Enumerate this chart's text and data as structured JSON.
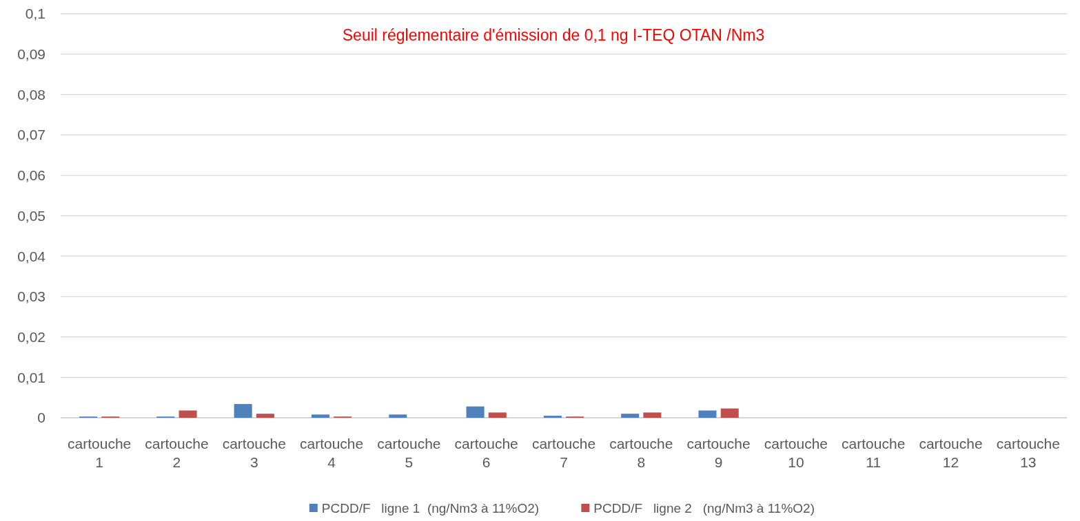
{
  "chart_data": {
    "type": "bar",
    "annotations": [
      "Seuil réglementaire d'émission de 0,1 ng I-TEQ OTAN /Nm3"
    ],
    "categories": [
      "cartouche 1",
      "cartouche 2",
      "cartouche 3",
      "cartouche 4",
      "cartouche 5",
      "cartouche 6",
      "cartouche 7",
      "cartouche 8",
      "cartouche 9",
      "cartouche 10",
      "cartouche 11",
      "cartouche 12",
      "cartouche 13"
    ],
    "series": [
      {
        "name": "PCDD/F   ligne 1  (ng/Nm3 à 11%O2)",
        "color": "#4f81bd",
        "values": [
          0.0003,
          0.0003,
          0.0034,
          0.0008,
          0.0008,
          0.0028,
          0.0005,
          0.001,
          0.0018,
          null,
          null,
          null,
          null
        ]
      },
      {
        "name": "PCDD/F   ligne 2   (ng/Nm3 à 11%O2)",
        "color": "#c0504d",
        "values": [
          0.0003,
          0.0018,
          0.001,
          0.0003,
          null,
          0.0013,
          0.0003,
          0.0013,
          0.0023,
          null,
          null,
          null,
          null
        ]
      }
    ],
    "ylim": [
      0,
      0.1
    ],
    "yticks": [
      0,
      {
        "value": 0.01,
        "label": "0,01"
      },
      {
        "value": 0.02,
        "label": "0,02"
      },
      {
        "value": 0.03,
        "label": "0,03"
      },
      {
        "value": 0.04,
        "label": "0,04"
      },
      {
        "value": 0.05,
        "label": "0,05"
      },
      {
        "value": 0.06,
        "label": "0,06"
      },
      {
        "value": 0.07,
        "label": "0,07"
      },
      {
        "value": 0.08,
        "label": "0,08"
      },
      {
        "value": 0.09,
        "label": "0,09"
      },
      {
        "value": 0.1,
        "label": "0,1"
      }
    ],
    "grid": true,
    "legend": "bottom"
  }
}
